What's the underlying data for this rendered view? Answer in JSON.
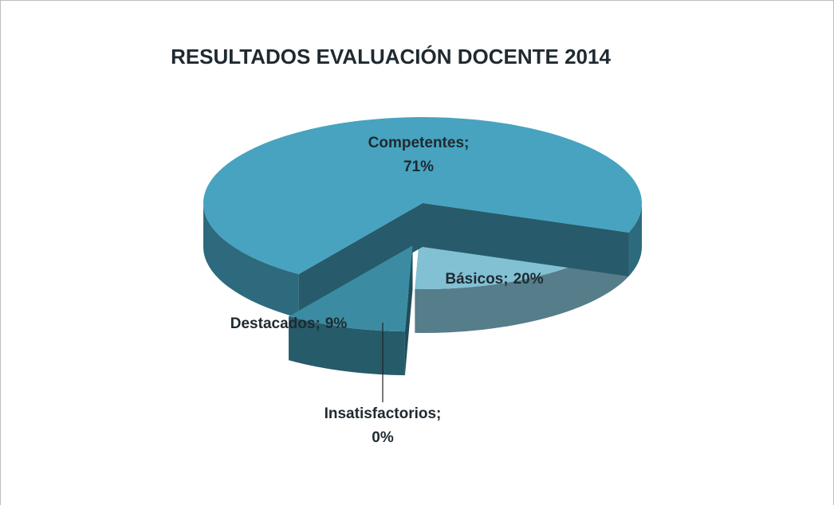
{
  "chart_data": {
    "type": "pie",
    "title": "RESULTADOS EVALUACIÓN DOCENTE 2014",
    "categories": [
      "Básicos",
      "Insatisfactorios",
      "Destacados",
      "Competentes"
    ],
    "values": [
      20,
      0,
      9,
      71
    ],
    "value_labels": [
      "20%",
      "0%",
      "9%",
      "71%"
    ],
    "label_separator": ";",
    "colors": [
      "#82c0d4",
      "#2f6f80",
      "#3b8ca3",
      "#47a3c0"
    ],
    "exploded": [
      false,
      false,
      true,
      false
    ]
  }
}
